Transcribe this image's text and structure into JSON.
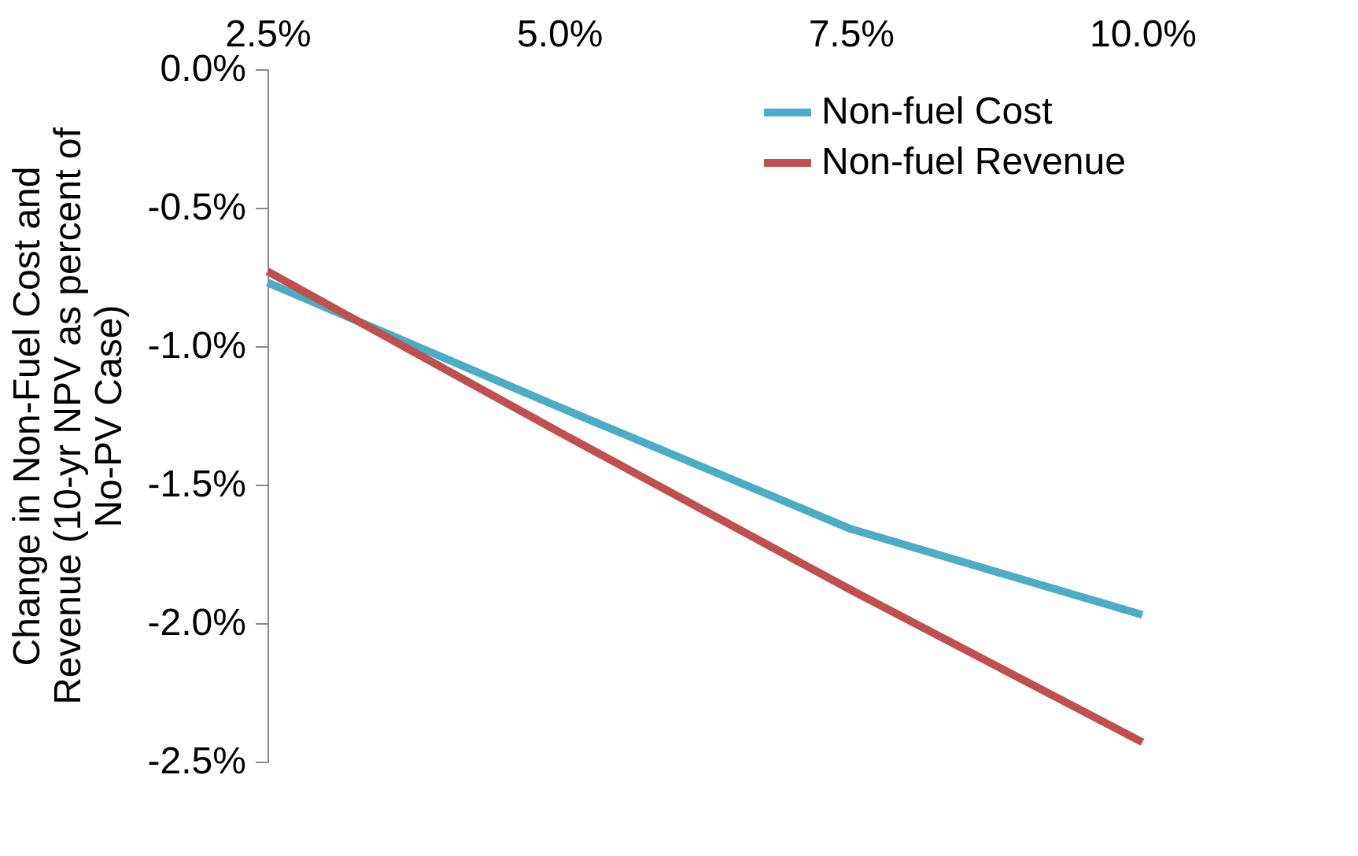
{
  "chart_data": {
    "type": "line",
    "ylabel": "Change in Non-Fuel Cost and Revenue (10-yr NPV as percent of No-PV Case)",
    "x": [
      2.5,
      5.0,
      7.5,
      10.0
    ],
    "series": [
      {
        "name": "Non-fuel Cost",
        "color": "#4bacc6",
        "values": [
          -0.77,
          -1.22,
          -1.66,
          -1.97
        ]
      },
      {
        "name": "Non-fuel Revenue",
        "color": "#c0504d",
        "values": [
          -0.73,
          -1.31,
          -1.88,
          -2.43
        ]
      }
    ],
    "xlim": [
      2.5,
      10.0
    ],
    "xticks": [
      {
        "value": 2.5,
        "label": "2.5%"
      },
      {
        "value": 5.0,
        "label": "5.0%"
      },
      {
        "value": 7.5,
        "label": "7.5%"
      },
      {
        "value": 10.0,
        "label": "10.0%"
      }
    ],
    "ylim": [
      -2.5,
      0.0
    ],
    "yticks": [
      {
        "value": 0.0,
        "label": "0.0%"
      },
      {
        "value": -0.5,
        "label": "-0.5%"
      },
      {
        "value": -1.0,
        "label": "-1.0%"
      },
      {
        "value": -1.5,
        "label": "-1.5%"
      },
      {
        "value": -2.0,
        "label": "-2.0%"
      },
      {
        "value": -2.5,
        "label": "-2.5%"
      }
    ],
    "legend": "top right",
    "grid": false,
    "line_style": "solid",
    "marker": "none"
  }
}
